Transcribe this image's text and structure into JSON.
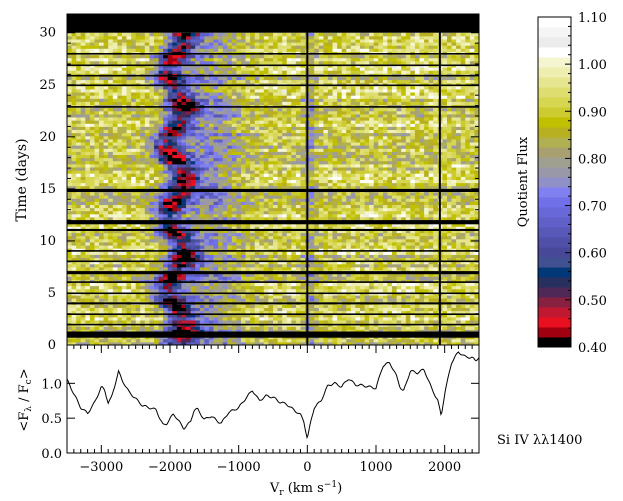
{
  "chart_data": [
    {
      "type": "heatmap",
      "ylabel": "Time (days)",
      "xlim": [
        -3500,
        2500
      ],
      "ylim": [
        0,
        31.8
      ],
      "yticks": [
        "0",
        "5",
        "10",
        "15",
        "20",
        "25",
        "30"
      ],
      "data_gaps_days": [
        [
          30.0,
          31.8
        ],
        [
          28.0,
          28.05
        ],
        [
          26.85,
          26.95
        ],
        [
          25.85,
          25.95
        ],
        [
          24.97,
          25.03
        ],
        [
          22.85,
          22.95
        ],
        [
          14.7,
          15.0
        ],
        [
          11.6,
          12.0
        ],
        [
          10.95,
          11.15
        ],
        [
          9.05,
          9.12
        ],
        [
          8.05,
          8.12
        ],
        [
          6.8,
          7.1
        ],
        [
          6.05,
          6.12
        ],
        [
          4.97,
          5.04
        ],
        [
          3.9,
          4.1
        ],
        [
          2.97,
          3.04
        ],
        [
          1.97,
          2.04
        ],
        [
          0.7,
          1.3
        ]
      ],
      "vertical_markers_kms": [
        0,
        1930
      ],
      "colorbar": {
        "label": "Quotient Flux",
        "range": [
          0.4,
          1.1
        ],
        "ticks": [
          "0.40",
          "0.50",
          "0.60",
          "0.70",
          "0.80",
          "0.90",
          "1.00",
          "1.10"
        ],
        "colors": [
          "#000000",
          "#a00010",
          "#e81020",
          "#c01830",
          "#882040",
          "#502858",
          "#283060",
          "#003878",
          "#405090",
          "#484898",
          "#5050a8",
          "#5858b8",
          "#6060c8",
          "#6868d8",
          "#7070e8",
          "#8080f0",
          "#9090c8",
          "#9898a8",
          "#a0a090",
          "#a8a070",
          "#b0b050",
          "#b8b020",
          "#c0c000",
          "#cccc30",
          "#d6d650",
          "#dede70",
          "#e6e690",
          "#eeeeb0",
          "#f5f5d0",
          "#ffffff",
          "#ececec",
          "#f5f5f5",
          "#ffffff"
        ]
      }
    },
    {
      "type": "line",
      "title": "Si IV λλ1400",
      "xlabel_main": "V",
      "xlabel_sub": "r",
      "xlabel_unit": " (km s",
      "xlabel_exp": "−1",
      "xlabel_close": ")",
      "ylabel": "<F",
      "ylabel_sub1": "λ",
      "ylabel_mid": " / F",
      "ylabel_sub2": "c",
      "ylabel_close": ">",
      "xlim": [
        -3500,
        2500
      ],
      "ylim": [
        0,
        1.55
      ],
      "xticks": [
        "−3000",
        "−2000",
        "−1000",
        "0",
        "1000",
        "2000"
      ],
      "xtick_values": [
        -3000,
        -2000,
        -1000,
        0,
        1000,
        2000
      ],
      "yticks": [
        "0.0",
        "0.5",
        "1.0"
      ],
      "x": [
        -3500,
        -3400,
        -3300,
        -3200,
        -3100,
        -3000,
        -2950,
        -2900,
        -2850,
        -2750,
        -2700,
        -2600,
        -2500,
        -2400,
        -2300,
        -2200,
        -2150,
        -2100,
        -2050,
        -1950,
        -1900,
        -1800,
        -1700,
        -1650,
        -1600,
        -1500,
        -1400,
        -1300,
        -1250,
        -1150,
        -1000,
        -900,
        -800,
        -700,
        -600,
        -500,
        -400,
        -300,
        -200,
        -100,
        -50,
        0,
        50,
        100,
        200,
        300,
        400,
        500,
        600,
        700,
        800,
        900,
        1000,
        1100,
        1200,
        1300,
        1350,
        1400,
        1500,
        1600,
        1700,
        1800,
        1900,
        1950,
        2000,
        2100,
        2200,
        2300,
        2400,
        2450,
        2500
      ],
      "y": [
        1.05,
        0.85,
        0.65,
        0.57,
        0.72,
        0.95,
        0.9,
        0.72,
        0.8,
        1.17,
        1.05,
        0.88,
        0.78,
        0.68,
        0.65,
        0.62,
        0.5,
        0.4,
        0.42,
        0.56,
        0.5,
        0.35,
        0.45,
        0.62,
        0.63,
        0.48,
        0.53,
        0.45,
        0.43,
        0.58,
        0.65,
        0.78,
        0.9,
        0.75,
        0.82,
        0.8,
        0.73,
        0.7,
        0.62,
        0.55,
        0.45,
        0.2,
        0.45,
        0.65,
        0.75,
        0.97,
        1.0,
        0.95,
        1.07,
        0.98,
        0.97,
        0.95,
        0.93,
        1.25,
        1.3,
        1.1,
        0.95,
        0.88,
        1.18,
        1.15,
        1.2,
        0.95,
        0.75,
        0.53,
        0.85,
        1.3,
        1.45,
        1.38,
        1.37,
        1.32,
        1.38
      ]
    }
  ]
}
